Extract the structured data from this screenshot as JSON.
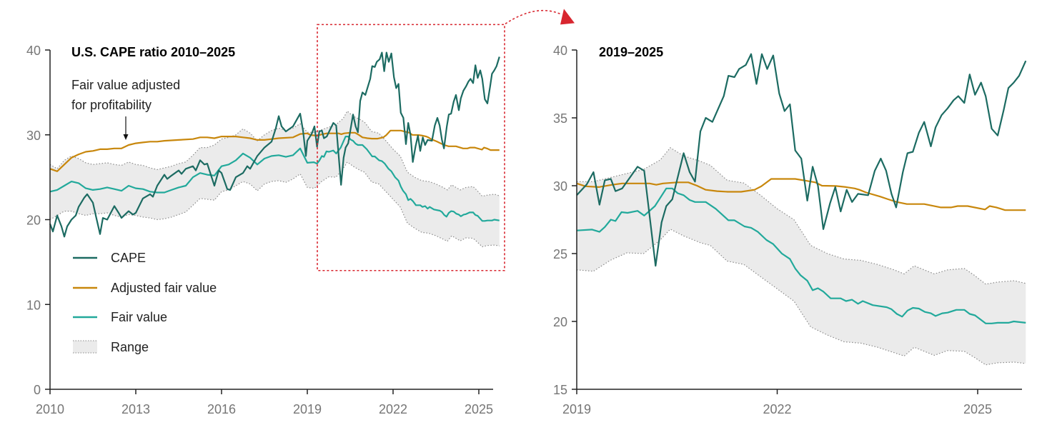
{
  "colors": {
    "cape": "#1c6b62",
    "adjusted": "#c8870c",
    "fair": "#22a99b",
    "range_fill": "#ebebeb",
    "range_edge": "#8a8a8a",
    "highlight": "#d8262f",
    "axis_text": "#767676"
  },
  "legend": {
    "items": [
      "CAPE",
      "Adjusted fair value",
      "Fair value",
      "Range"
    ],
    "placement": "lower-left of left chart"
  },
  "annotation": {
    "line1": "Fair value adjusted",
    "line2": "for profitability",
    "year": 2012.65
  },
  "chart_data": [
    {
      "type": "line",
      "title": "U.S. CAPE ratio 2010–2025",
      "xlim": [
        2010,
        2025.72
      ],
      "ylim": [
        0,
        40
      ],
      "xticks": [
        "2010",
        "2013",
        "2016",
        "2019",
        "2022",
        "2025"
      ],
      "yticks": [
        "0",
        "10",
        "20",
        "30",
        "40"
      ],
      "grid": false,
      "highlight_box": {
        "x_from": 2019.35,
        "x_to": 2025.9,
        "y_from": 14,
        "y_to": 43,
        "links_to": "2019–2025"
      }
    },
    {
      "type": "line",
      "title": "2019–2025",
      "xlim": [
        2019,
        2025.72
      ],
      "ylim": [
        15,
        40
      ],
      "xticks": [
        "2019",
        "2022",
        "2025"
      ],
      "yticks": [
        "15",
        "20",
        "25",
        "30",
        "35",
        "40"
      ],
      "grid": false
    }
  ],
  "series": {
    "cape": [
      [
        2010.0,
        19.5
      ],
      [
        2010.1,
        18.6
      ],
      [
        2010.25,
        20.5
      ],
      [
        2010.4,
        19.2
      ],
      [
        2010.5,
        18.0
      ],
      [
        2010.6,
        19.2
      ],
      [
        2010.75,
        20
      ],
      [
        2010.9,
        20.5
      ],
      [
        2011.0,
        21.5
      ],
      [
        2011.2,
        22.6
      ],
      [
        2011.3,
        23.0
      ],
      [
        2011.5,
        22.0
      ],
      [
        2011.6,
        20.5
      ],
      [
        2011.75,
        18.3
      ],
      [
        2011.85,
        20.2
      ],
      [
        2012.0,
        20.0
      ],
      [
        2012.25,
        21.6
      ],
      [
        2012.4,
        20.8
      ],
      [
        2012.5,
        20.2
      ],
      [
        2012.75,
        21.0
      ],
      [
        2012.9,
        20.6
      ],
      [
        2013.0,
        20.8
      ],
      [
        2013.25,
        22.5
      ],
      [
        2013.5,
        23.0
      ],
      [
        2013.6,
        22.7
      ],
      [
        2013.75,
        24.0
      ],
      [
        2014.0,
        25.3
      ],
      [
        2014.1,
        24.8
      ],
      [
        2014.25,
        25.2
      ],
      [
        2014.5,
        25.8
      ],
      [
        2014.6,
        25.4
      ],
      [
        2014.75,
        26.0
      ],
      [
        2015.0,
        26.3
      ],
      [
        2015.1,
        25.8
      ],
      [
        2015.25,
        27.0
      ],
      [
        2015.4,
        26.5
      ],
      [
        2015.5,
        26.6
      ],
      [
        2015.75,
        24.0
      ],
      [
        2015.9,
        25.8
      ],
      [
        2016.0,
        25.5
      ],
      [
        2016.2,
        23.6
      ],
      [
        2016.3,
        23.5
      ],
      [
        2016.5,
        25.0
      ],
      [
        2016.75,
        25.5
      ],
      [
        2016.9,
        26.3
      ],
      [
        2017.0,
        26.0
      ],
      [
        2017.25,
        27.5
      ],
      [
        2017.5,
        28.5
      ],
      [
        2017.75,
        29.2
      ],
      [
        2017.9,
        30.8
      ],
      [
        2018.0,
        32.2
      ],
      [
        2018.1,
        31.0
      ],
      [
        2018.25,
        30.4
      ],
      [
        2018.5,
        31.0
      ],
      [
        2018.75,
        32.5
      ],
      [
        2018.85,
        30.5
      ],
      [
        2018.95,
        27.5
      ],
      [
        2019.0,
        29.3
      ],
      [
        2019.15,
        30.1
      ],
      [
        2019.25,
        31.0
      ],
      [
        2019.34,
        28.6
      ],
      [
        2019.42,
        30.4
      ],
      [
        2019.51,
        30.5
      ],
      [
        2019.58,
        29.6
      ],
      [
        2019.68,
        29.8
      ],
      [
        2019.91,
        31.4
      ],
      [
        2020.01,
        31.1
      ],
      [
        2020.18,
        24.1
      ],
      [
        2020.27,
        27.3
      ],
      [
        2020.34,
        28.5
      ],
      [
        2020.43,
        29.0
      ],
      [
        2020.6,
        32.4
      ],
      [
        2020.69,
        31.0
      ],
      [
        2020.77,
        30.3
      ],
      [
        2020.85,
        34.0
      ],
      [
        2020.93,
        35.0
      ],
      [
        2021.03,
        34.7
      ],
      [
        2021.2,
        36.6
      ],
      [
        2021.27,
        38.1
      ],
      [
        2021.36,
        38.0
      ],
      [
        2021.43,
        38.6
      ],
      [
        2021.53,
        38.9
      ],
      [
        2021.61,
        39.7
      ],
      [
        2021.69,
        37.5
      ],
      [
        2021.77,
        39.7
      ],
      [
        2021.85,
        38.6
      ],
      [
        2021.94,
        39.6
      ],
      [
        2022.03,
        36.8
      ],
      [
        2022.11,
        35.5
      ],
      [
        2022.19,
        36.0
      ],
      [
        2022.27,
        32.6
      ],
      [
        2022.36,
        32.0
      ],
      [
        2022.45,
        28.9
      ],
      [
        2022.53,
        31.4
      ],
      [
        2022.61,
        30.0
      ],
      [
        2022.69,
        26.8
      ],
      [
        2022.79,
        28.7
      ],
      [
        2022.87,
        29.9
      ],
      [
        2022.95,
        28.1
      ],
      [
        2023.04,
        29.7
      ],
      [
        2023.12,
        28.8
      ],
      [
        2023.21,
        29.4
      ],
      [
        2023.36,
        29.3
      ],
      [
        2023.46,
        31.1
      ],
      [
        2023.55,
        32.0
      ],
      [
        2023.63,
        31.1
      ],
      [
        2023.71,
        29.4
      ],
      [
        2023.78,
        28.4
      ],
      [
        2023.88,
        31.0
      ],
      [
        2023.95,
        32.4
      ],
      [
        2024.03,
        32.5
      ],
      [
        2024.12,
        33.9
      ],
      [
        2024.2,
        34.7
      ],
      [
        2024.3,
        32.9
      ],
      [
        2024.37,
        34.3
      ],
      [
        2024.46,
        35.2
      ],
      [
        2024.55,
        35.7
      ],
      [
        2024.64,
        36.3
      ],
      [
        2024.71,
        36.6
      ],
      [
        2024.8,
        36.1
      ],
      [
        2024.88,
        38.2
      ],
      [
        2024.96,
        36.7
      ],
      [
        2025.05,
        37.6
      ],
      [
        2025.12,
        36.6
      ],
      [
        2025.21,
        34.2
      ],
      [
        2025.3,
        33.7
      ],
      [
        2025.39,
        35.6
      ],
      [
        2025.46,
        37.2
      ],
      [
        2025.54,
        37.6
      ],
      [
        2025.62,
        38.1
      ],
      [
        2025.72,
        39.2
      ]
    ],
    "adjusted": [
      [
        2010.0,
        26.0
      ],
      [
        2010.25,
        25.7
      ],
      [
        2010.5,
        26.5
      ],
      [
        2010.75,
        27.3
      ],
      [
        2011.0,
        27.7
      ],
      [
        2011.25,
        28.0
      ],
      [
        2011.5,
        28.1
      ],
      [
        2011.75,
        28.3
      ],
      [
        2012.0,
        28.3
      ],
      [
        2012.25,
        28.4
      ],
      [
        2012.5,
        28.4
      ],
      [
        2012.75,
        28.8
      ],
      [
        2013.0,
        29.0
      ],
      [
        2013.25,
        29.1
      ],
      [
        2013.5,
        29.2
      ],
      [
        2013.75,
        29.2
      ],
      [
        2014.0,
        29.3
      ],
      [
        2014.5,
        29.4
      ],
      [
        2015.0,
        29.5
      ],
      [
        2015.25,
        29.7
      ],
      [
        2015.5,
        29.7
      ],
      [
        2015.75,
        29.6
      ],
      [
        2016.0,
        29.8
      ],
      [
        2016.5,
        29.8
      ],
      [
        2016.75,
        29.7
      ],
      [
        2017.0,
        29.6
      ],
      [
        2017.25,
        29.4
      ],
      [
        2017.5,
        29.4
      ],
      [
        2017.75,
        29.5
      ],
      [
        2018.0,
        29.6
      ],
      [
        2018.5,
        29.7
      ],
      [
        2018.75,
        30.1
      ],
      [
        2019.0,
        30.17
      ],
      [
        2019.13,
        29.96
      ],
      [
        2019.33,
        29.9
      ],
      [
        2019.53,
        30.07
      ],
      [
        2019.68,
        30.17
      ],
      [
        2020.09,
        30.17
      ],
      [
        2020.19,
        30.07
      ],
      [
        2020.29,
        30.17
      ],
      [
        2020.5,
        30.25
      ],
      [
        2020.67,
        30.25
      ],
      [
        2020.8,
        30.0
      ],
      [
        2020.93,
        29.7
      ],
      [
        2021.1,
        29.6
      ],
      [
        2021.26,
        29.55
      ],
      [
        2021.46,
        29.55
      ],
      [
        2021.66,
        29.7
      ],
      [
        2021.76,
        29.95
      ],
      [
        2021.91,
        30.5
      ],
      [
        2022.27,
        30.5
      ],
      [
        2022.45,
        30.35
      ],
      [
        2022.57,
        30.25
      ],
      [
        2022.67,
        30.0
      ],
      [
        2022.88,
        29.98
      ],
      [
        2023.03,
        29.9
      ],
      [
        2023.16,
        29.8
      ],
      [
        2023.23,
        29.7
      ],
      [
        2023.33,
        29.5
      ],
      [
        2023.54,
        29.2
      ],
      [
        2023.66,
        29.0
      ],
      [
        2023.79,
        28.8
      ],
      [
        2023.94,
        28.65
      ],
      [
        2024.2,
        28.65
      ],
      [
        2024.45,
        28.4
      ],
      [
        2024.6,
        28.4
      ],
      [
        2024.7,
        28.5
      ],
      [
        2024.85,
        28.5
      ],
      [
        2025.11,
        28.25
      ],
      [
        2025.18,
        28.5
      ],
      [
        2025.28,
        28.4
      ],
      [
        2025.41,
        28.2
      ],
      [
        2025.72,
        28.2
      ]
    ],
    "fair": [
      [
        2010.0,
        23.3
      ],
      [
        2010.25,
        23.5
      ],
      [
        2010.5,
        24.0
      ],
      [
        2010.75,
        24.5
      ],
      [
        2011.0,
        24.3
      ],
      [
        2011.25,
        23.7
      ],
      [
        2011.5,
        23.5
      ],
      [
        2011.75,
        23.6
      ],
      [
        2012.0,
        23.8
      ],
      [
        2012.25,
        23.6
      ],
      [
        2012.5,
        23.4
      ],
      [
        2012.75,
        24.0
      ],
      [
        2013.0,
        23.7
      ],
      [
        2013.25,
        23.6
      ],
      [
        2013.5,
        23.3
      ],
      [
        2013.75,
        23.2
      ],
      [
        2014.0,
        23.2
      ],
      [
        2014.25,
        23.5
      ],
      [
        2014.5,
        23.8
      ],
      [
        2014.75,
        24.0
      ],
      [
        2015.0,
        25.0
      ],
      [
        2015.25,
        25.5
      ],
      [
        2015.5,
        25.3
      ],
      [
        2015.75,
        25.2
      ],
      [
        2016.0,
        26.3
      ],
      [
        2016.25,
        26.5
      ],
      [
        2016.5,
        27.0
      ],
      [
        2016.75,
        27.8
      ],
      [
        2017.0,
        27.3
      ],
      [
        2017.25,
        26.5
      ],
      [
        2017.5,
        27.2
      ],
      [
        2017.75,
        27.5
      ],
      [
        2018.0,
        27.6
      ],
      [
        2018.25,
        27.4
      ],
      [
        2018.5,
        27.6
      ],
      [
        2018.75,
        28.4
      ],
      [
        2019.0,
        26.7
      ],
      [
        2019.23,
        26.77
      ],
      [
        2019.34,
        26.6
      ],
      [
        2019.42,
        26.96
      ],
      [
        2019.51,
        27.5
      ],
      [
        2019.58,
        27.4
      ],
      [
        2019.67,
        28.05
      ],
      [
        2019.76,
        28.0
      ],
      [
        2019.91,
        28.15
      ],
      [
        2020.01,
        27.8
      ],
      [
        2020.17,
        28.5
      ],
      [
        2020.34,
        29.8
      ],
      [
        2020.43,
        29.8
      ],
      [
        2020.51,
        29.45
      ],
      [
        2020.6,
        29.3
      ],
      [
        2020.69,
        28.95
      ],
      [
        2020.77,
        28.8
      ],
      [
        2020.93,
        28.8
      ],
      [
        2021.08,
        28.3
      ],
      [
        2021.27,
        27.45
      ],
      [
        2021.36,
        27.45
      ],
      [
        2021.51,
        27.0
      ],
      [
        2021.61,
        26.9
      ],
      [
        2021.71,
        26.6
      ],
      [
        2021.84,
        26.0
      ],
      [
        2021.94,
        25.7
      ],
      [
        2022.07,
        25.0
      ],
      [
        2022.19,
        24.6
      ],
      [
        2022.27,
        23.9
      ],
      [
        2022.35,
        23.4
      ],
      [
        2022.45,
        23.0
      ],
      [
        2022.53,
        22.3
      ],
      [
        2022.61,
        22.45
      ],
      [
        2022.69,
        22.2
      ],
      [
        2022.8,
        21.7
      ],
      [
        2022.95,
        21.7
      ],
      [
        2023.03,
        21.5
      ],
      [
        2023.12,
        21.6
      ],
      [
        2023.21,
        21.3
      ],
      [
        2023.28,
        21.5
      ],
      [
        2023.43,
        21.2
      ],
      [
        2023.64,
        21.05
      ],
      [
        2023.71,
        20.9
      ],
      [
        2023.79,
        20.55
      ],
      [
        2023.87,
        20.35
      ],
      [
        2023.95,
        20.8
      ],
      [
        2024.03,
        21.0
      ],
      [
        2024.12,
        20.95
      ],
      [
        2024.21,
        20.7
      ],
      [
        2024.3,
        20.6
      ],
      [
        2024.37,
        20.4
      ],
      [
        2024.47,
        20.6
      ],
      [
        2024.55,
        20.65
      ],
      [
        2024.68,
        20.85
      ],
      [
        2024.8,
        20.85
      ],
      [
        2024.88,
        20.55
      ],
      [
        2024.96,
        20.45
      ],
      [
        2025.12,
        19.85
      ],
      [
        2025.21,
        19.85
      ],
      [
        2025.3,
        19.9
      ],
      [
        2025.46,
        19.9
      ],
      [
        2025.54,
        20.0
      ],
      [
        2025.72,
        19.9
      ]
    ],
    "range": [
      [
        2010.0,
        20.0,
        26.5
      ],
      [
        2010.25,
        20.5,
        26.0
      ],
      [
        2010.5,
        21.0,
        27.0
      ],
      [
        2010.75,
        21.0,
        27.5
      ],
      [
        2011.0,
        20.7,
        27.2
      ],
      [
        2011.25,
        20.5,
        26.7
      ],
      [
        2011.5,
        20.7,
        26.5
      ],
      [
        2011.75,
        20.7,
        26.6
      ],
      [
        2012.0,
        20.8,
        26.7
      ],
      [
        2012.25,
        20.5,
        26.5
      ],
      [
        2012.5,
        20.3,
        26.4
      ],
      [
        2012.75,
        20.6,
        26.8
      ],
      [
        2013.0,
        20.5,
        26.5
      ],
      [
        2013.25,
        20.3,
        26.4
      ],
      [
        2013.5,
        20.2,
        26.1
      ],
      [
        2013.75,
        20.0,
        25.9
      ],
      [
        2014.0,
        20.1,
        26.1
      ],
      [
        2014.25,
        20.3,
        26.3
      ],
      [
        2014.5,
        20.6,
        26.6
      ],
      [
        2014.75,
        20.9,
        26.8
      ],
      [
        2015.0,
        21.7,
        27.6
      ],
      [
        2015.25,
        22.5,
        28.5
      ],
      [
        2015.5,
        22.4,
        28.5
      ],
      [
        2015.75,
        22.3,
        28.8
      ],
      [
        2016.0,
        23.3,
        29.5
      ],
      [
        2016.25,
        23.5,
        29.7
      ],
      [
        2016.5,
        24.0,
        30.0
      ],
      [
        2016.75,
        24.5,
        30.7
      ],
      [
        2017.0,
        24.2,
        30.2
      ],
      [
        2017.25,
        23.4,
        29.3
      ],
      [
        2017.5,
        24.2,
        30.0
      ],
      [
        2017.75,
        24.5,
        30.5
      ],
      [
        2018.0,
        24.6,
        30.8
      ],
      [
        2018.25,
        24.4,
        30.5
      ],
      [
        2018.5,
        24.8,
        30.8
      ],
      [
        2018.75,
        25.4,
        31.3
      ],
      [
        2019.0,
        23.8,
        30.3
      ],
      [
        2019.25,
        23.7,
        30.3
      ],
      [
        2019.5,
        24.5,
        30.6
      ],
      [
        2019.75,
        25.05,
        30.9
      ],
      [
        2020.0,
        25.0,
        31.2
      ],
      [
        2020.25,
        26.0,
        31.9
      ],
      [
        2020.4,
        26.8,
        32.8
      ],
      [
        2020.6,
        26.3,
        32.2
      ],
      [
        2020.85,
        25.8,
        31.8
      ],
      [
        2021.0,
        25.6,
        31.5
      ],
      [
        2021.25,
        24.45,
        30.4
      ],
      [
        2021.5,
        24.2,
        30.2
      ],
      [
        2021.75,
        23.3,
        29.3
      ],
      [
        2022.0,
        22.4,
        28.3
      ],
      [
        2022.25,
        21.5,
        27.5
      ],
      [
        2022.5,
        19.6,
        25.6
      ],
      [
        2022.75,
        19.0,
        25.0
      ],
      [
        2023.0,
        18.5,
        24.6
      ],
      [
        2023.25,
        18.4,
        24.5
      ],
      [
        2023.5,
        18.1,
        24.2
      ],
      [
        2023.75,
        17.7,
        23.8
      ],
      [
        2023.9,
        17.45,
        23.5
      ],
      [
        2024.05,
        18.1,
        24.1
      ],
      [
        2024.35,
        17.5,
        23.5
      ],
      [
        2024.55,
        17.85,
        23.8
      ],
      [
        2024.8,
        17.8,
        23.9
      ],
      [
        2024.95,
        17.35,
        23.4
      ],
      [
        2025.12,
        16.8,
        22.75
      ],
      [
        2025.3,
        16.95,
        22.9
      ],
      [
        2025.55,
        17.0,
        23.0
      ],
      [
        2025.72,
        16.9,
        22.8
      ]
    ]
  }
}
